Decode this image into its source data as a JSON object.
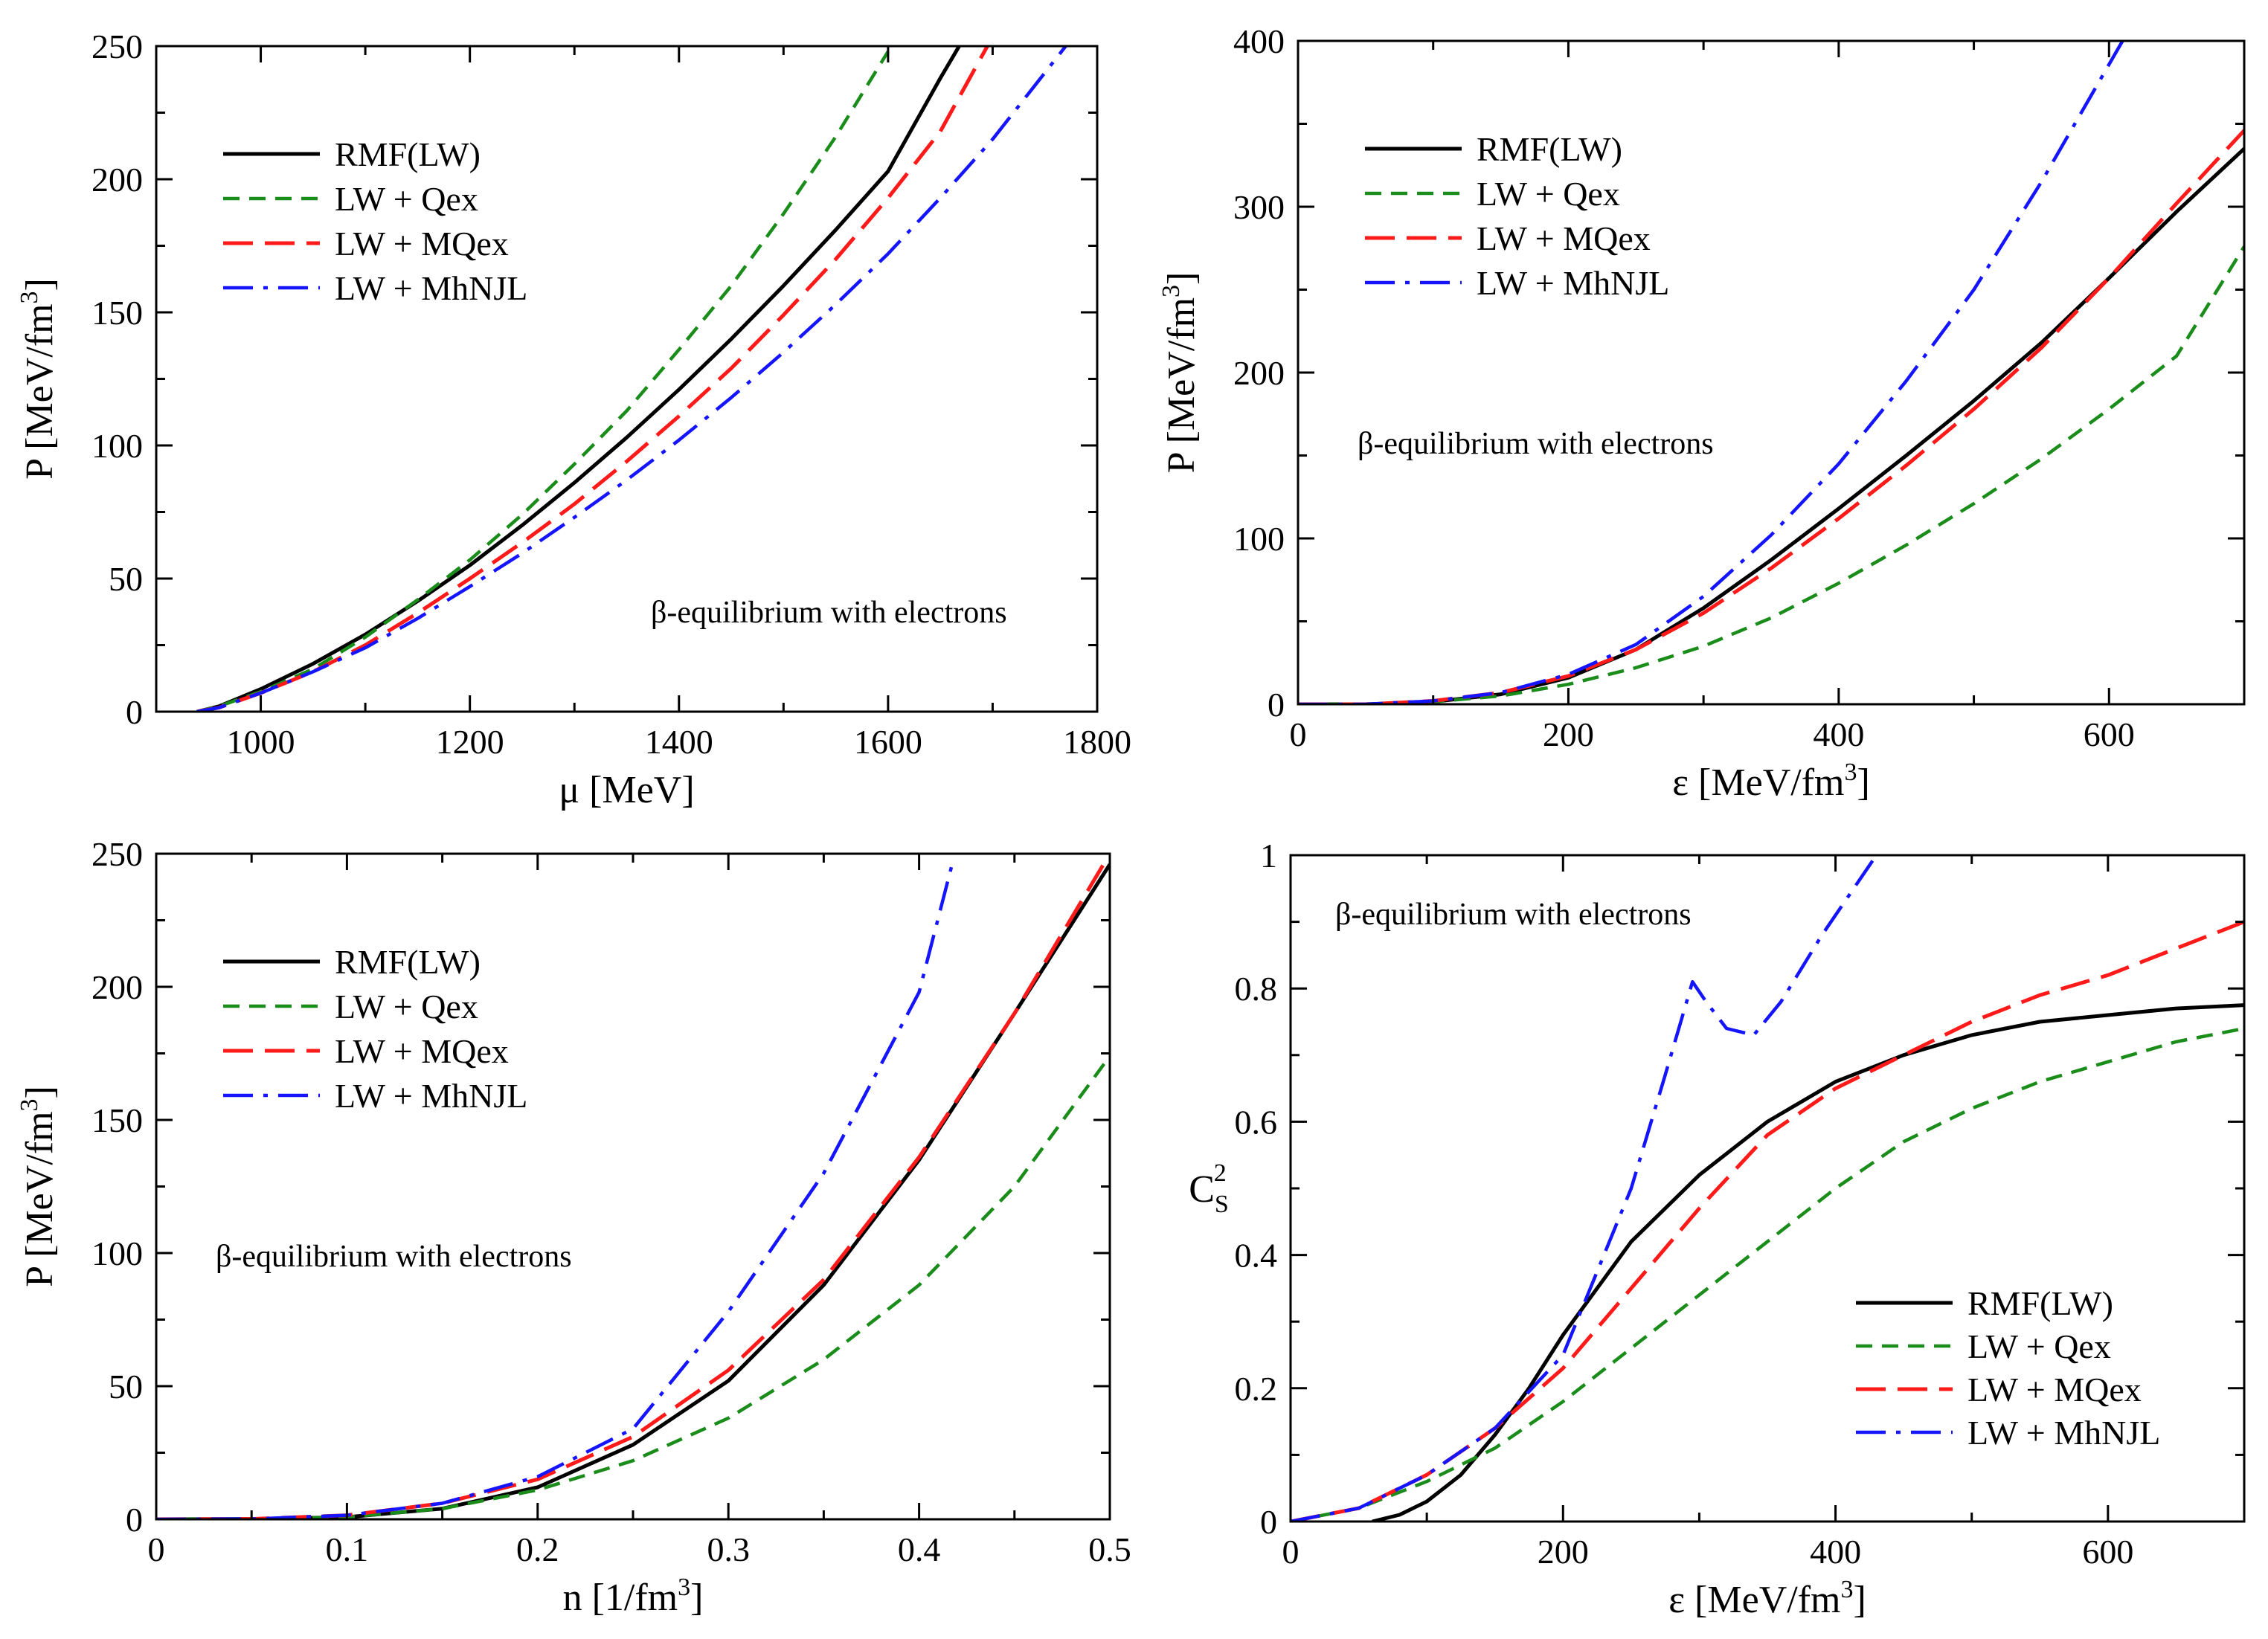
{
  "colors": {
    "rmf": "#000000",
    "qex": "#1a8c1a",
    "mqex": "#ff1a1a",
    "mhnjl": "#1414ff"
  },
  "annotation": "β-equilibrium with electrons",
  "legend_labels": [
    "RMF(LW)",
    "LW + Qex",
    "LW + MQex",
    "LW + MhNJL"
  ],
  "chart_data": [
    {
      "type": "line",
      "panel": "top-left",
      "xlabel": "μ [MeV]",
      "ylabel": "P [MeV/fm3]",
      "xlim": [
        900,
        1800
      ],
      "ylim": [
        0,
        250
      ],
      "xticks": [
        1000,
        1200,
        1400,
        1600,
        1800
      ],
      "yticks": [
        0,
        50,
        100,
        150,
        200,
        250
      ],
      "legend_position": "top-left",
      "annotation_position": "bottom-right",
      "series": [
        {
          "name": "RMF(LW)",
          "x": [
            939,
            960,
            1000,
            1050,
            1100,
            1150,
            1200,
            1250,
            1300,
            1350,
            1400,
            1450,
            1500,
            1550,
            1600,
            1650,
            1668
          ],
          "values": [
            0,
            2,
            8.5,
            18,
            29,
            41.5,
            55,
            70,
            86,
            103,
            121,
            140,
            160,
            181,
            203,
            238,
            250
          ]
        },
        {
          "name": "LW + Qex",
          "x": [
            939,
            960,
            1000,
            1050,
            1100,
            1150,
            1200,
            1250,
            1300,
            1350,
            1400,
            1450,
            1500,
            1550,
            1600
          ],
          "values": [
            0,
            2,
            7.5,
            16,
            28,
            42,
            57,
            74,
            93,
            113,
            136,
            160,
            187,
            216,
            248
          ]
        },
        {
          "name": "LW + MQex",
          "x": [
            939,
            960,
            1000,
            1050,
            1100,
            1150,
            1200,
            1250,
            1300,
            1350,
            1400,
            1450,
            1500,
            1550,
            1600,
            1650,
            1695
          ],
          "values": [
            0,
            1.5,
            7,
            15,
            25,
            37,
            50,
            63.5,
            78,
            94,
            111,
            129,
            149,
            170,
            193,
            218,
            250
          ]
        },
        {
          "name": "LW + MhNJL",
          "x": [
            939,
            960,
            1000,
            1050,
            1100,
            1150,
            1200,
            1250,
            1300,
            1350,
            1400,
            1450,
            1500,
            1550,
            1600,
            1650,
            1700,
            1770
          ],
          "values": [
            0,
            1.5,
            7,
            15,
            24,
            35,
            47,
            59.5,
            73,
            87,
            102,
            118,
            135,
            153,
            172,
            193,
            215,
            250
          ]
        }
      ]
    },
    {
      "type": "line",
      "panel": "top-right",
      "xlabel": "ε [MeV/fm3]",
      "ylabel": "P [MeV/fm3]",
      "xlim": [
        0,
        700
      ],
      "ylim": [
        0,
        400
      ],
      "xticks": [
        0,
        200,
        400,
        600
      ],
      "yticks": [
        0,
        100,
        200,
        300,
        400
      ],
      "legend_position": "top-left",
      "annotation_position": "middle-left",
      "series": [
        {
          "name": "RMF(LW)",
          "x": [
            0,
            50,
            100,
            150,
            200,
            250,
            300,
            350,
            400,
            450,
            500,
            550,
            600,
            650,
            700
          ],
          "values": [
            0,
            0,
            1.5,
            6,
            16,
            33,
            58,
            87,
            118,
            150,
            183,
            218,
            257,
            297,
            335
          ]
        },
        {
          "name": "LW + Qex",
          "x": [
            0,
            50,
            100,
            150,
            200,
            250,
            300,
            350,
            400,
            450,
            500,
            550,
            600,
            650,
            700
          ],
          "values": [
            0,
            0,
            1.5,
            5,
            12,
            22,
            35,
            52,
            73,
            96,
            121,
            148,
            178,
            210,
            276
          ]
        },
        {
          "name": "LW + MQex",
          "x": [
            0,
            50,
            100,
            150,
            200,
            250,
            300,
            350,
            400,
            450,
            500,
            550,
            600,
            650,
            700
          ],
          "values": [
            0,
            0,
            2,
            7,
            17,
            33,
            55,
            82,
            112,
            144,
            178,
            215,
            257,
            302,
            346
          ]
        },
        {
          "name": "LW + MhNJL",
          "x": [
            0,
            50,
            100,
            150,
            200,
            250,
            300,
            350,
            400,
            450,
            500,
            550,
            610
          ],
          "values": [
            0,
            0,
            2,
            7,
            18,
            36,
            65,
            102,
            145,
            195,
            250,
            315,
            400
          ]
        }
      ]
    },
    {
      "type": "line",
      "panel": "bottom-left",
      "xlabel": "n [1/fm3]",
      "ylabel": "P [MeV/fm3]",
      "xlim": [
        0,
        0.5
      ],
      "ylim": [
        0,
        250
      ],
      "xticks": [
        0,
        0.1,
        0.2,
        0.3,
        0.4,
        0.5
      ],
      "yticks": [
        0,
        50,
        100,
        150,
        200,
        250
      ],
      "legend_position": "top-left",
      "annotation_position": "middle-left",
      "series": [
        {
          "name": "RMF(LW)",
          "x": [
            0,
            0.05,
            0.1,
            0.15,
            0.2,
            0.25,
            0.3,
            0.35,
            0.4,
            0.45,
            0.5
          ],
          "values": [
            0,
            0.1,
            0.8,
            4,
            12,
            28,
            52,
            88,
            135,
            190,
            246
          ]
        },
        {
          "name": "LW + Qex",
          "x": [
            0,
            0.05,
            0.1,
            0.15,
            0.2,
            0.25,
            0.3,
            0.35,
            0.4,
            0.45,
            0.5
          ],
          "values": [
            0,
            0.1,
            0.8,
            4,
            11,
            22,
            38,
            60,
            88,
            125,
            174
          ]
        },
        {
          "name": "LW + MQex",
          "x": [
            0,
            0.05,
            0.1,
            0.15,
            0.2,
            0.25,
            0.3,
            0.35,
            0.4,
            0.45,
            0.5
          ],
          "values": [
            0,
            0.1,
            1.5,
            6,
            15,
            31,
            56,
            90,
            136,
            190,
            250
          ]
        },
        {
          "name": "LW + MhNJL",
          "x": [
            0,
            0.05,
            0.1,
            0.15,
            0.2,
            0.25,
            0.3,
            0.35,
            0.4,
            0.418
          ],
          "values": [
            0,
            0.1,
            1.5,
            6,
            16,
            34,
            78,
            130,
            198,
            248
          ]
        }
      ]
    },
    {
      "type": "line",
      "panel": "bottom-right",
      "xlabel": "ε [MeV/fm3]",
      "ylabel": "CS2",
      "xlim": [
        0,
        700
      ],
      "ylim": [
        0,
        1
      ],
      "xticks": [
        0,
        200,
        400,
        600
      ],
      "yticks": [
        0,
        0.2,
        0.4,
        0.6,
        0.8,
        1
      ],
      "legend_position": "bottom-right",
      "annotation_position": "top-left",
      "series": [
        {
          "name": "RMF(LW)",
          "x": [
            60,
            80,
            100,
            125,
            150,
            175,
            200,
            250,
            300,
            350,
            400,
            450,
            500,
            550,
            600,
            650,
            700
          ],
          "values": [
            0,
            0.01,
            0.03,
            0.07,
            0.13,
            0.2,
            0.28,
            0.42,
            0.52,
            0.6,
            0.66,
            0.7,
            0.73,
            0.75,
            0.76,
            0.77,
            0.775
          ]
        },
        {
          "name": "LW + Qex",
          "x": [
            0,
            50,
            100,
            150,
            200,
            250,
            300,
            350,
            400,
            450,
            500,
            550,
            600,
            650,
            700
          ],
          "values": [
            0,
            0.02,
            0.06,
            0.11,
            0.18,
            0.26,
            0.34,
            0.42,
            0.5,
            0.57,
            0.62,
            0.66,
            0.69,
            0.72,
            0.74
          ]
        },
        {
          "name": "LW + MQex",
          "x": [
            0,
            50,
            100,
            150,
            200,
            250,
            300,
            350,
            400,
            450,
            500,
            550,
            600,
            650,
            700
          ],
          "values": [
            0,
            0.02,
            0.07,
            0.14,
            0.23,
            0.35,
            0.47,
            0.58,
            0.65,
            0.7,
            0.75,
            0.79,
            0.82,
            0.86,
            0.9
          ]
        },
        {
          "name": "LW + MhNJL",
          "x": [
            0,
            50,
            100,
            150,
            200,
            250,
            275,
            295,
            305,
            320,
            340,
            360,
            390,
            420,
            430
          ],
          "values": [
            0,
            0.02,
            0.07,
            0.14,
            0.25,
            0.5,
            0.67,
            0.81,
            0.78,
            0.74,
            0.73,
            0.78,
            0.88,
            0.97,
            1.0
          ]
        }
      ]
    }
  ]
}
